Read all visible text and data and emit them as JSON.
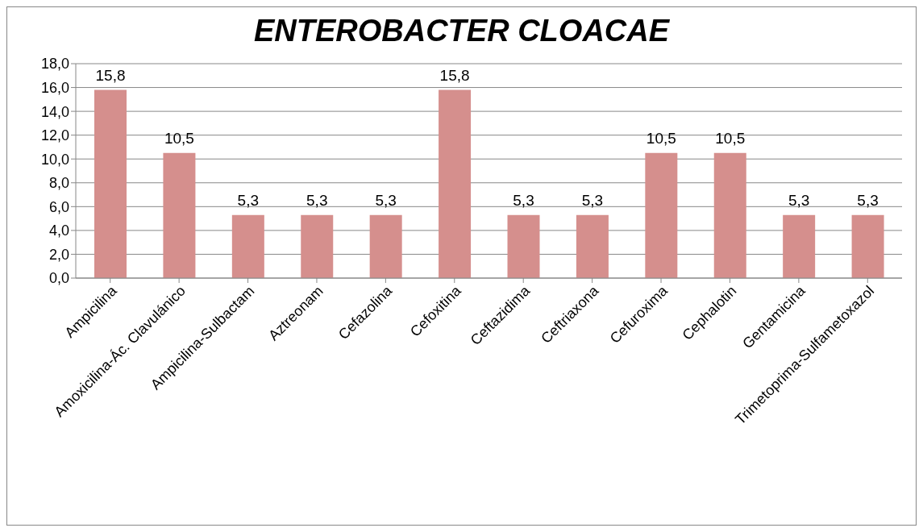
{
  "chart_data": {
    "type": "bar",
    "title": "ENTEROBACTER CLOACAE",
    "categories": [
      "Ampicilina",
      "Amoxicilina-Ác. Clavulánico",
      "Ampicilina-Sulbactam",
      "Aztreonam",
      "Cefazolina",
      "Cefoxitina",
      "Ceftazidima",
      "Ceftriaxona",
      "Cefuroxima",
      "Cephalotin",
      "Gentamicina",
      "Trimetoprima-Sulfametoxazol"
    ],
    "values": [
      15.8,
      10.5,
      5.3,
      5.3,
      5.3,
      15.8,
      5.3,
      5.3,
      10.5,
      10.5,
      5.3,
      5.3
    ],
    "value_labels": [
      "15,8",
      "10,5",
      "5,3",
      "5,3",
      "5,3",
      "15,8",
      "5,3",
      "5,3",
      "10,5",
      "10,5",
      "5,3",
      "5,3"
    ],
    "color": "#d58f8d",
    "ylim": [
      0,
      18
    ],
    "yticks": [
      {
        "value": 0,
        "label": "0,0"
      },
      {
        "value": 2,
        "label": "2,0"
      },
      {
        "value": 4,
        "label": "4,0"
      },
      {
        "value": 6,
        "label": "6,0"
      },
      {
        "value": 8,
        "label": "8,0"
      },
      {
        "value": 10,
        "label": "10,0"
      },
      {
        "value": 12,
        "label": "12,0"
      },
      {
        "value": 14,
        "label": "14,0"
      },
      {
        "value": 16,
        "label": "16,0"
      },
      {
        "value": 18,
        "label": "18,0"
      }
    ],
    "grid": "y"
  }
}
